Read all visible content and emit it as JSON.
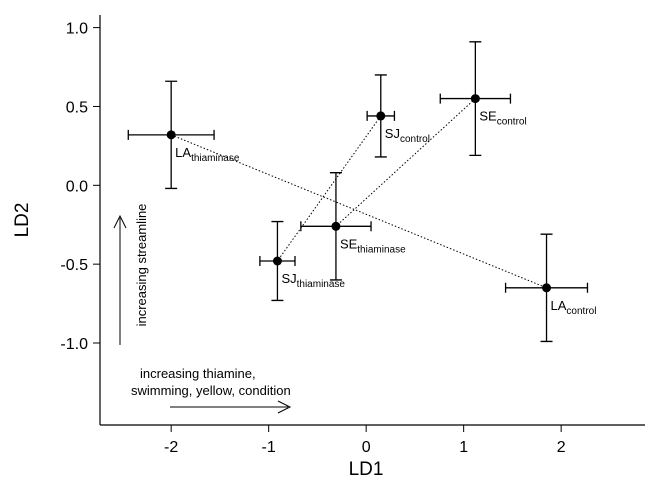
{
  "chart_data": {
    "type": "scatter",
    "x_label": "LD1",
    "y_label": "LD2",
    "xlim": [
      -2.73,
      2.86
    ],
    "ylim": [
      -1.52,
      1.08
    ],
    "xticks": [
      -2,
      -1,
      0,
      1,
      2
    ],
    "yticks": [
      {
        "value": 1,
        "label": "1.0"
      },
      {
        "value": 0.5,
        "label": "0.5"
      },
      {
        "value": 0,
        "label": "0.0"
      },
      -0.5,
      {
        "value": -1,
        "label": "-1.0"
      }
    ],
    "color": "#000000",
    "points": [
      {
        "label": "LA",
        "sub": "thiaminase",
        "x": -2.0,
        "y": 0.32,
        "xerr": 0.44,
        "yerr": 0.34
      },
      {
        "label": "SJ",
        "sub": "control",
        "x": 0.15,
        "y": 0.44,
        "xerr": 0.14,
        "yerr": 0.26
      },
      {
        "label": "SE",
        "sub": "control",
        "x": 1.12,
        "y": 0.55,
        "xerr": 0.36,
        "yerr": 0.36
      },
      {
        "label": "SE",
        "sub": "thiaminase",
        "x": -0.31,
        "y": -0.26,
        "xerr": 0.36,
        "yerr": 0.34
      },
      {
        "label": "SJ",
        "sub": "thiaminase",
        "x": -0.91,
        "y": -0.48,
        "xerr": 0.18,
        "yerr": 0.25
      },
      {
        "label": "LA",
        "sub": "control",
        "x": 1.85,
        "y": -0.65,
        "xerr": 0.42,
        "yerr": 0.34
      }
    ],
    "annotations": [
      "increasing streamline",
      "increasing thiamine,",
      "swimming, yellow, condition"
    ]
  }
}
